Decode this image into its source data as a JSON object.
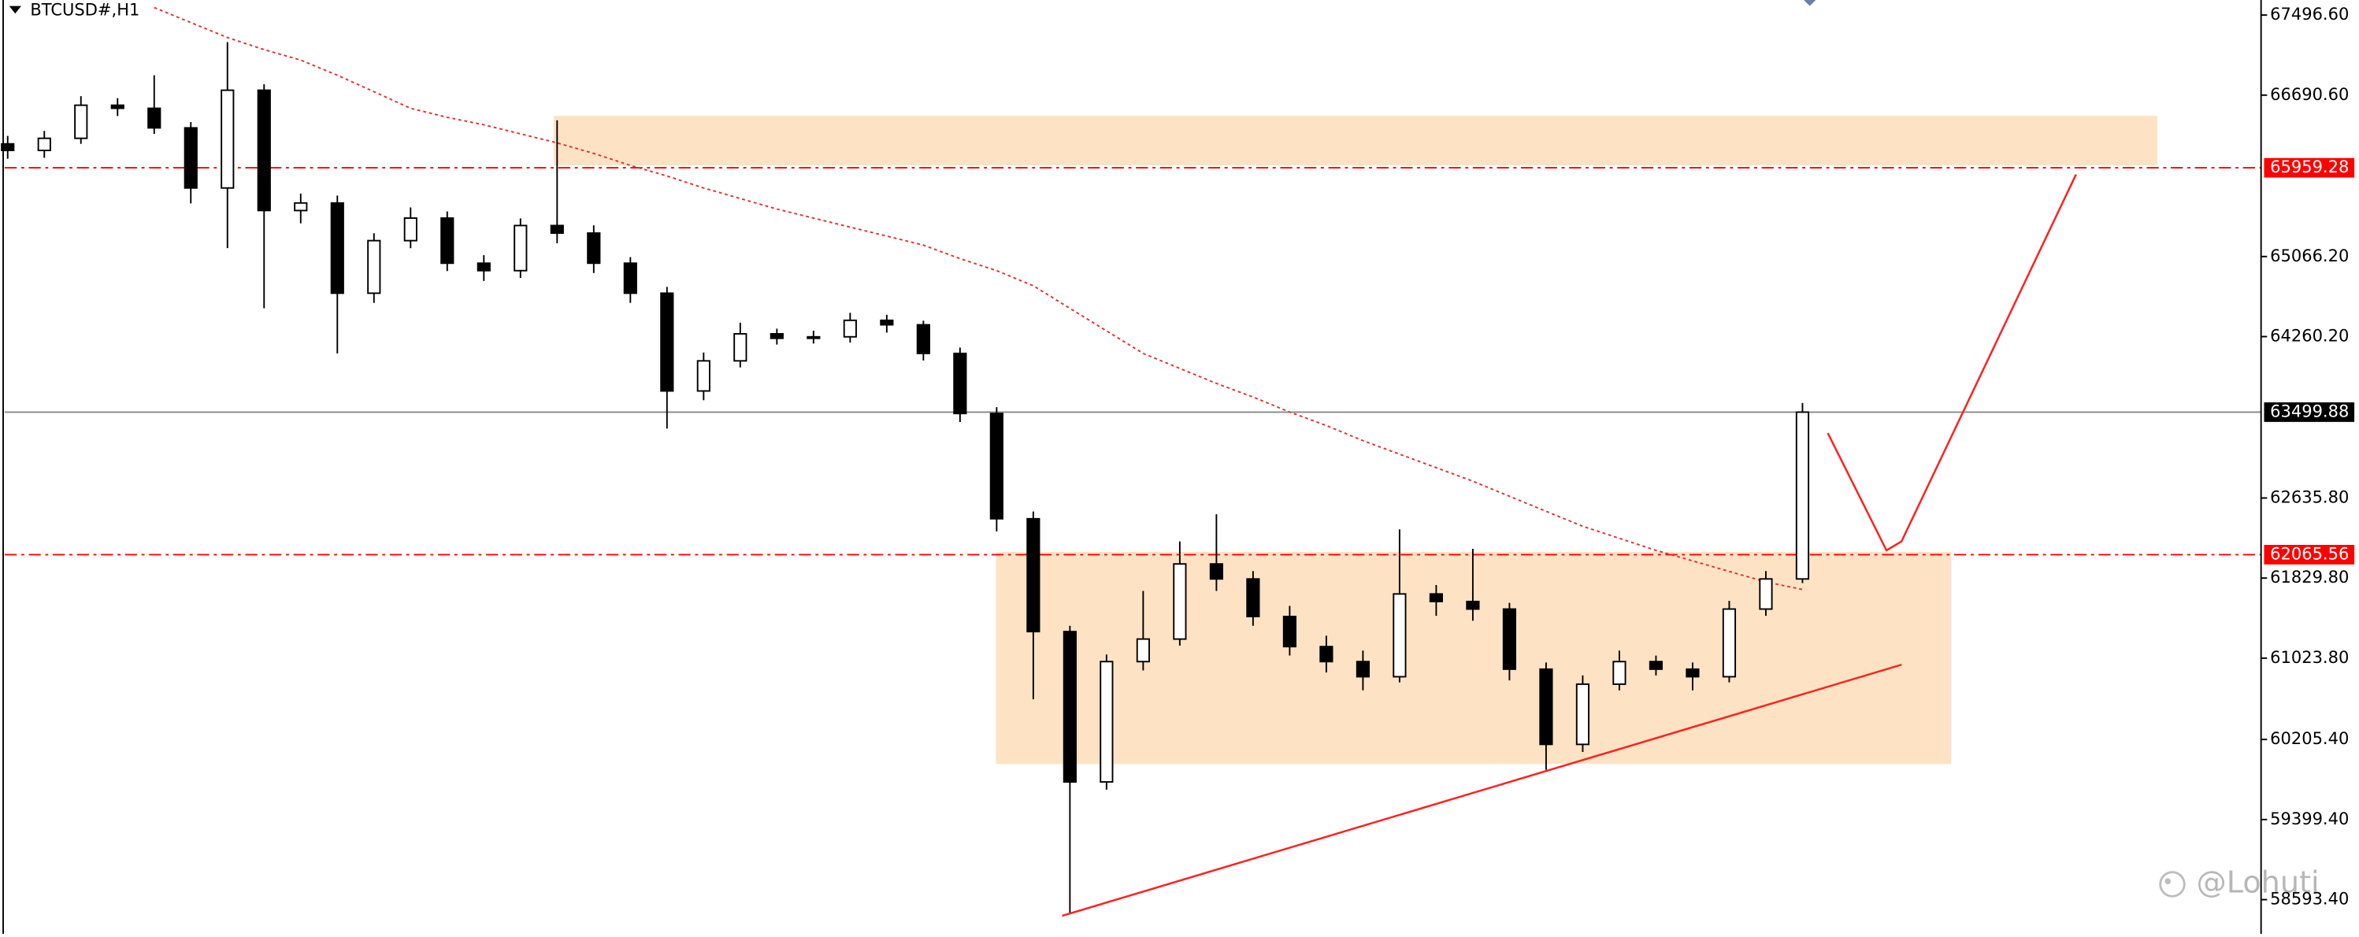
{
  "chart_data": {
    "type": "candlestick",
    "title": "BTCUSD#,H1",
    "watermark": "@Lohuti",
    "ylim": [
      58249,
      67648
    ],
    "yticks": [
      {
        "value": 67496.6,
        "label": "67496.60"
      },
      {
        "value": 66690.6,
        "label": "66690.60"
      },
      {
        "value": 65066.2,
        "label": "65066.20"
      },
      {
        "value": 64260.2,
        "label": "64260.20"
      },
      {
        "value": 62635.8,
        "label": "62635.80"
      },
      {
        "value": 61829.8,
        "label": "61829.80"
      },
      {
        "value": 61023.8,
        "label": "61023.80"
      },
      {
        "value": 60205.4,
        "label": "60205.40"
      },
      {
        "value": 59399.4,
        "label": "59399.40"
      },
      {
        "value": 58593.4,
        "label": "58593.40"
      }
    ],
    "candle_color": "#000000",
    "open": [
      66200,
      66134,
      66256,
      66589,
      66558,
      66361,
      65756,
      66740,
      65529,
      65605,
      64697,
      65226,
      65453,
      64999,
      64924,
      65378,
      65302,
      64999,
      64697,
      63713,
      64016,
      64288,
      64243,
      64258,
      64424,
      64379,
      64091,
      63486,
      62427,
      61291,
      59778,
      60989,
      61216,
      61972,
      61821,
      61443,
      61140,
      60989,
      60837,
      61670,
      61594,
      61518,
      60913,
      60156,
      60762,
      60989,
      60913,
      60837,
      61518,
      61821
    ],
    "high": [
      66280,
      66330,
      66680,
      66660,
      66890,
      66420,
      67224,
      66800,
      65700,
      65680,
      65300,
      65560,
      65520,
      65080,
      65450,
      66437,
      65380,
      65060,
      64760,
      64100,
      64400,
      64340,
      64320,
      64500,
      64480,
      64420,
      64150,
      63550,
      62500,
      61350,
      61060,
      61700,
      62199,
      62472,
      61900,
      61550,
      61250,
      61100,
      62320,
      61760,
      62124,
      61580,
      60980,
      60850,
      61100,
      61050,
      60980,
      61600,
      61900,
      63592
    ],
    "low": [
      66050,
      66060,
      66200,
      66480,
      66300,
      65600,
      65151,
      64545,
      65400,
      64091,
      64600,
      65150,
      64920,
      64820,
      64850,
      65200,
      64900,
      64600,
      63335,
      63620,
      63950,
      64180,
      64190,
      64200,
      64300,
      64020,
      63400,
      62300,
      60610,
      58446,
      59700,
      60900,
      61150,
      61700,
      61350,
      61050,
      60880,
      60700,
      60780,
      61450,
      61400,
      60800,
      59899,
      60080,
      60700,
      60850,
      60700,
      60780,
      61450,
      61780
    ],
    "close": [
      66134,
      66256,
      66589,
      66558,
      66361,
      65756,
      66740,
      65529,
      65605,
      64697,
      65226,
      65453,
      64999,
      64924,
      65378,
      65302,
      64999,
      64697,
      63713,
      64016,
      64288,
      64243,
      64258,
      64424,
      64379,
      64091,
      63486,
      62427,
      61291,
      59778,
      60989,
      61216,
      61972,
      61821,
      61443,
      61140,
      60989,
      60837,
      61670,
      61594,
      61518,
      60913,
      60156,
      60762,
      60989,
      60913,
      60837,
      61518,
      61821,
      63500
    ],
    "moving_average": {
      "color": "#e03030",
      "values": [
        null,
        null,
        null,
        null,
        67572,
        67421,
        67270,
        67149,
        67043,
        66891,
        66725,
        66558,
        66467,
        66392,
        66301,
        66210,
        66104,
        65983,
        65877,
        65756,
        65650,
        65544,
        65453,
        65362,
        65272,
        65181,
        65045,
        64924,
        64772,
        64545,
        64318,
        64091,
        63940,
        63789,
        63652,
        63501,
        63365,
        63213,
        63077,
        62941,
        62805,
        62653,
        62502,
        62351,
        62230,
        62109,
        62003,
        61897,
        61791,
        61715
      ]
    },
    "levels": [
      {
        "value": 65959.28,
        "color": "#ff0000",
        "style": "dashdot"
      },
      {
        "value": 63499.88,
        "color": "#000000",
        "style": "solid"
      },
      {
        "value": 62065.56,
        "color": "#ff0000",
        "style": "dashdot"
      }
    ],
    "zones": [
      {
        "ymin": 65983,
        "ymax": 66482,
        "color": "#fde3c4"
      },
      {
        "ymin": 59959,
        "ymax": 62093,
        "color": "#fde3c4"
      }
    ]
  }
}
